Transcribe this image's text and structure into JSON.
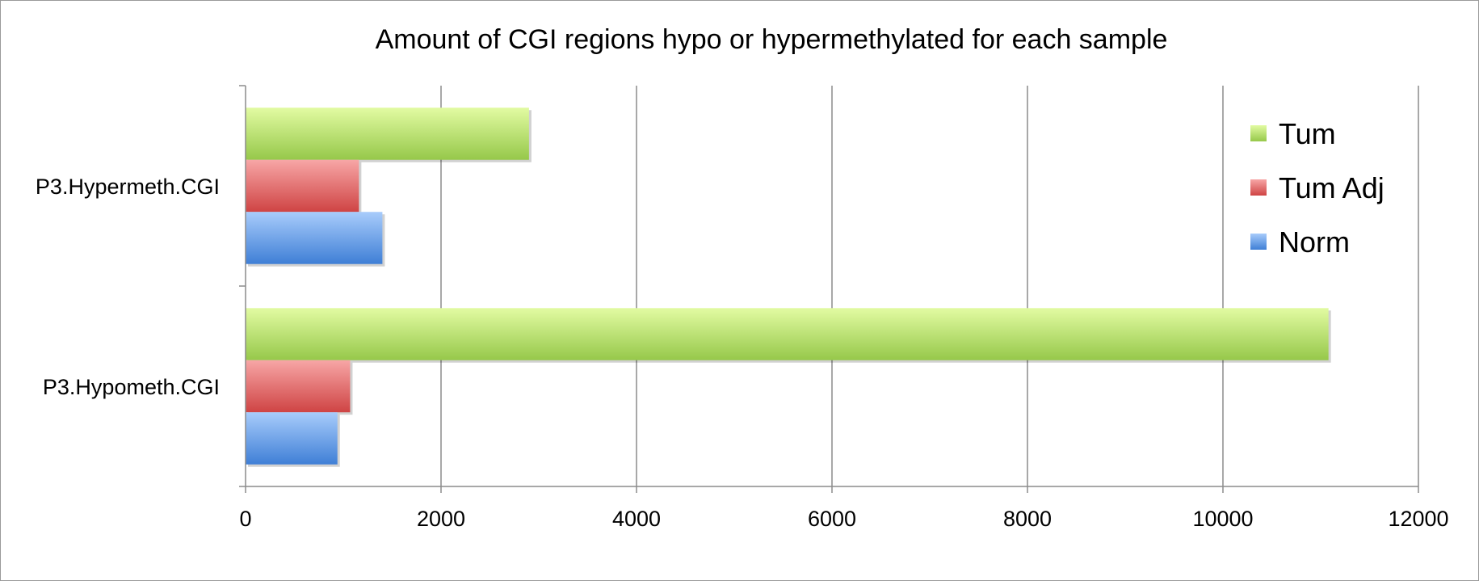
{
  "chart_data": {
    "type": "bar",
    "orientation": "horizontal",
    "title": "Amount of CGI regions hypo or hypermethylated for each sample",
    "xlabel": "",
    "ylabel": "",
    "categories": [
      "P3.Hypometh.CGI",
      "P3.Hypermeth.CGI"
    ],
    "series": [
      {
        "name": "Norm",
        "values": [
          940,
          1400
        ],
        "color": "#4a86d8"
      },
      {
        "name": "Tum Adj",
        "values": [
          1070,
          1160
        ],
        "color": "#d84a4a"
      },
      {
        "name": "Tum",
        "values": [
          11080,
          2900
        ],
        "color": "#a4d65a"
      }
    ],
    "xlim": [
      0,
      12000
    ],
    "xticks": [
      0,
      2000,
      4000,
      6000,
      8000,
      10000,
      12000
    ],
    "xtick_labels": [
      "0",
      "2000",
      "4000",
      "6000",
      "8000",
      "10000",
      "12000"
    ],
    "grid": "vertical",
    "legend": {
      "position": "right",
      "order": [
        "Tum",
        "Tum Adj",
        "Norm"
      ]
    }
  }
}
